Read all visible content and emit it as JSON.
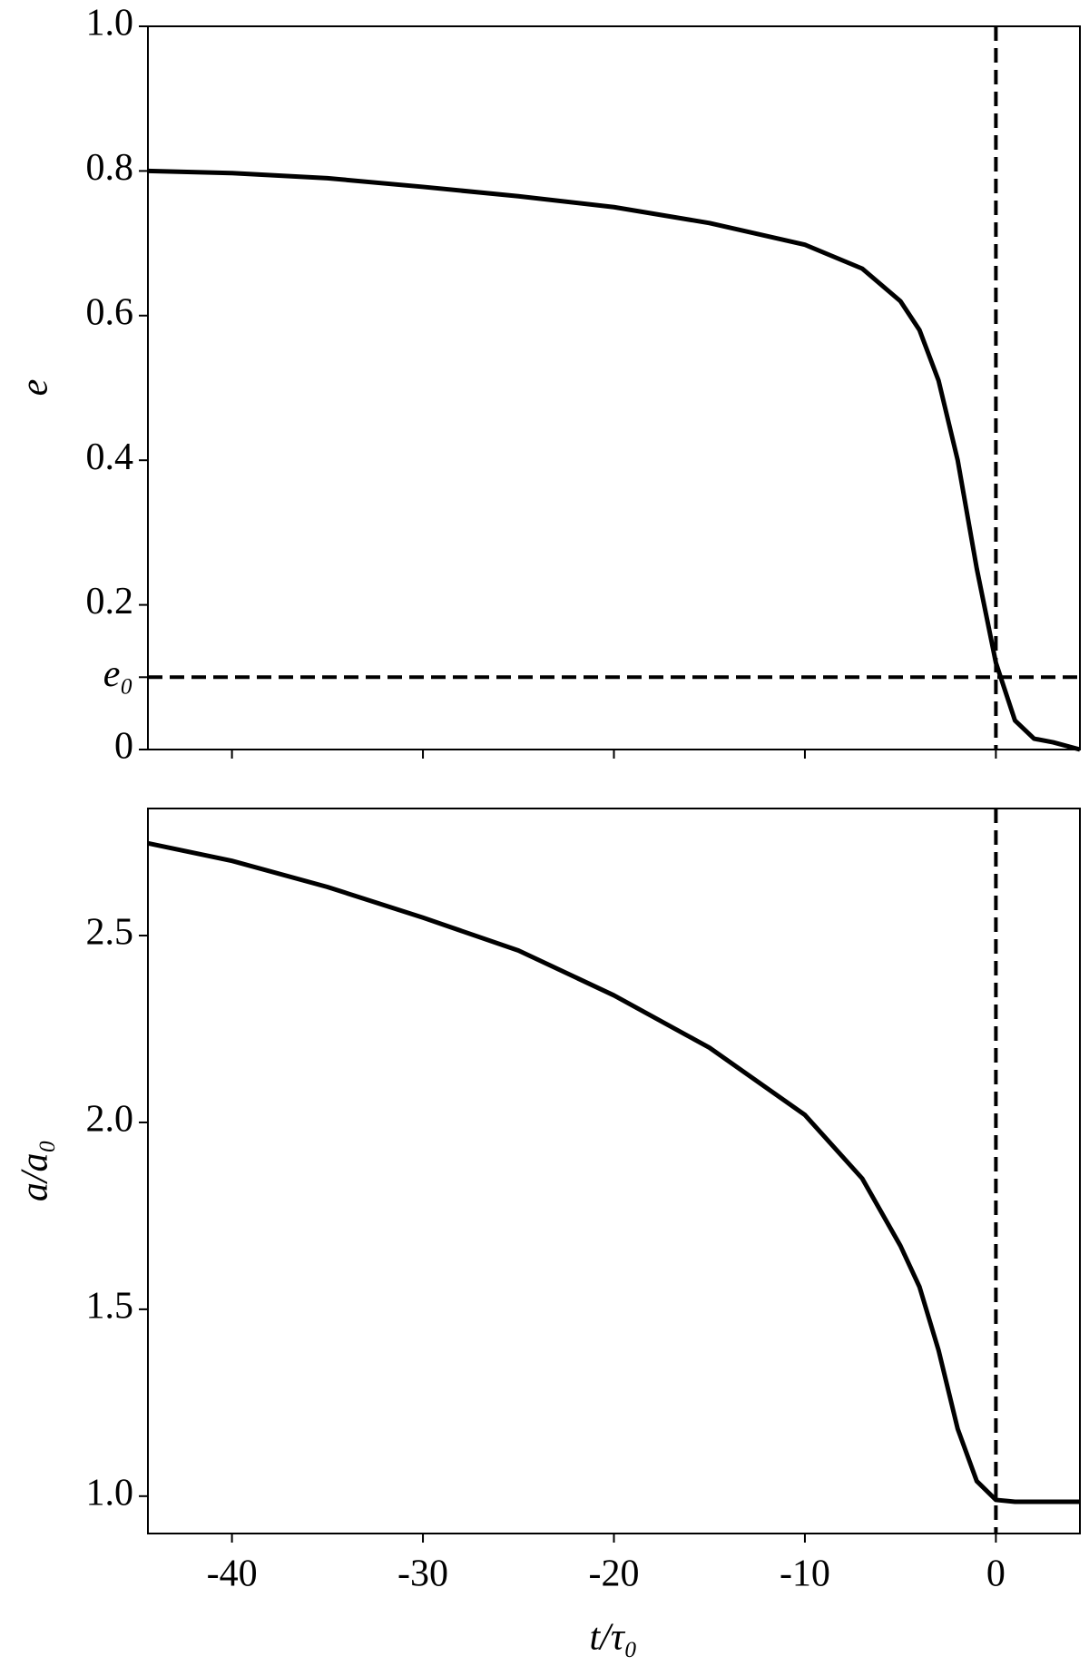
{
  "chart_data": [
    {
      "type": "line",
      "ylabel": "e",
      "x": [
        -44.4,
        -40,
        -35,
        -30,
        -25,
        -20,
        -15,
        -10,
        -7,
        -5,
        -4,
        -3,
        -2,
        -1,
        0,
        1,
        2,
        3,
        4.4
      ],
      "series": [
        {
          "name": "e",
          "color": "#000000",
          "values": [
            0.8,
            0.797,
            0.79,
            0.778,
            0.765,
            0.75,
            0.728,
            0.698,
            0.665,
            0.62,
            0.58,
            0.51,
            0.4,
            0.25,
            0.12,
            0.04,
            0.015,
            0.01,
            0.0
          ]
        }
      ],
      "xlim": [
        -44.4,
        4.4
      ],
      "ylim": [
        0,
        1
      ],
      "yticks": [
        0,
        {
          "value": 0.1,
          "label": "e₀"
        },
        0.2,
        0.4,
        0.6,
        0.8,
        {
          "value": 1,
          "label": "1.0"
        }
      ],
      "hline": 0.1,
      "vline": 0
    },
    {
      "type": "line",
      "ylabel": "a/a₀",
      "xlabel": "t/τ₀",
      "x": [
        -44.4,
        -40,
        -35,
        -30,
        -25,
        -20,
        -15,
        -10,
        -7,
        -5,
        -4,
        -3,
        -2,
        -1,
        0,
        1,
        2,
        3,
        4.4
      ],
      "series": [
        {
          "name": "a/a₀",
          "color": "#000000",
          "values": [
            2.747,
            2.7,
            2.63,
            2.548,
            2.46,
            2.34,
            2.2,
            2.02,
            1.85,
            1.67,
            1.56,
            1.39,
            1.18,
            1.04,
            0.99,
            0.985,
            0.985,
            0.985,
            0.985
          ]
        }
      ],
      "xlim": [
        -44.4,
        4.4
      ],
      "ylim": [
        0.9,
        2.84
      ],
      "xticks": [
        -40,
        -30,
        -20,
        -10,
        0
      ],
      "yticks": [
        {
          "value": 1,
          "label": "1.0"
        },
        1.5,
        {
          "value": 2,
          "label": "2.0"
        },
        2.5
      ],
      "vline": 0
    }
  ]
}
